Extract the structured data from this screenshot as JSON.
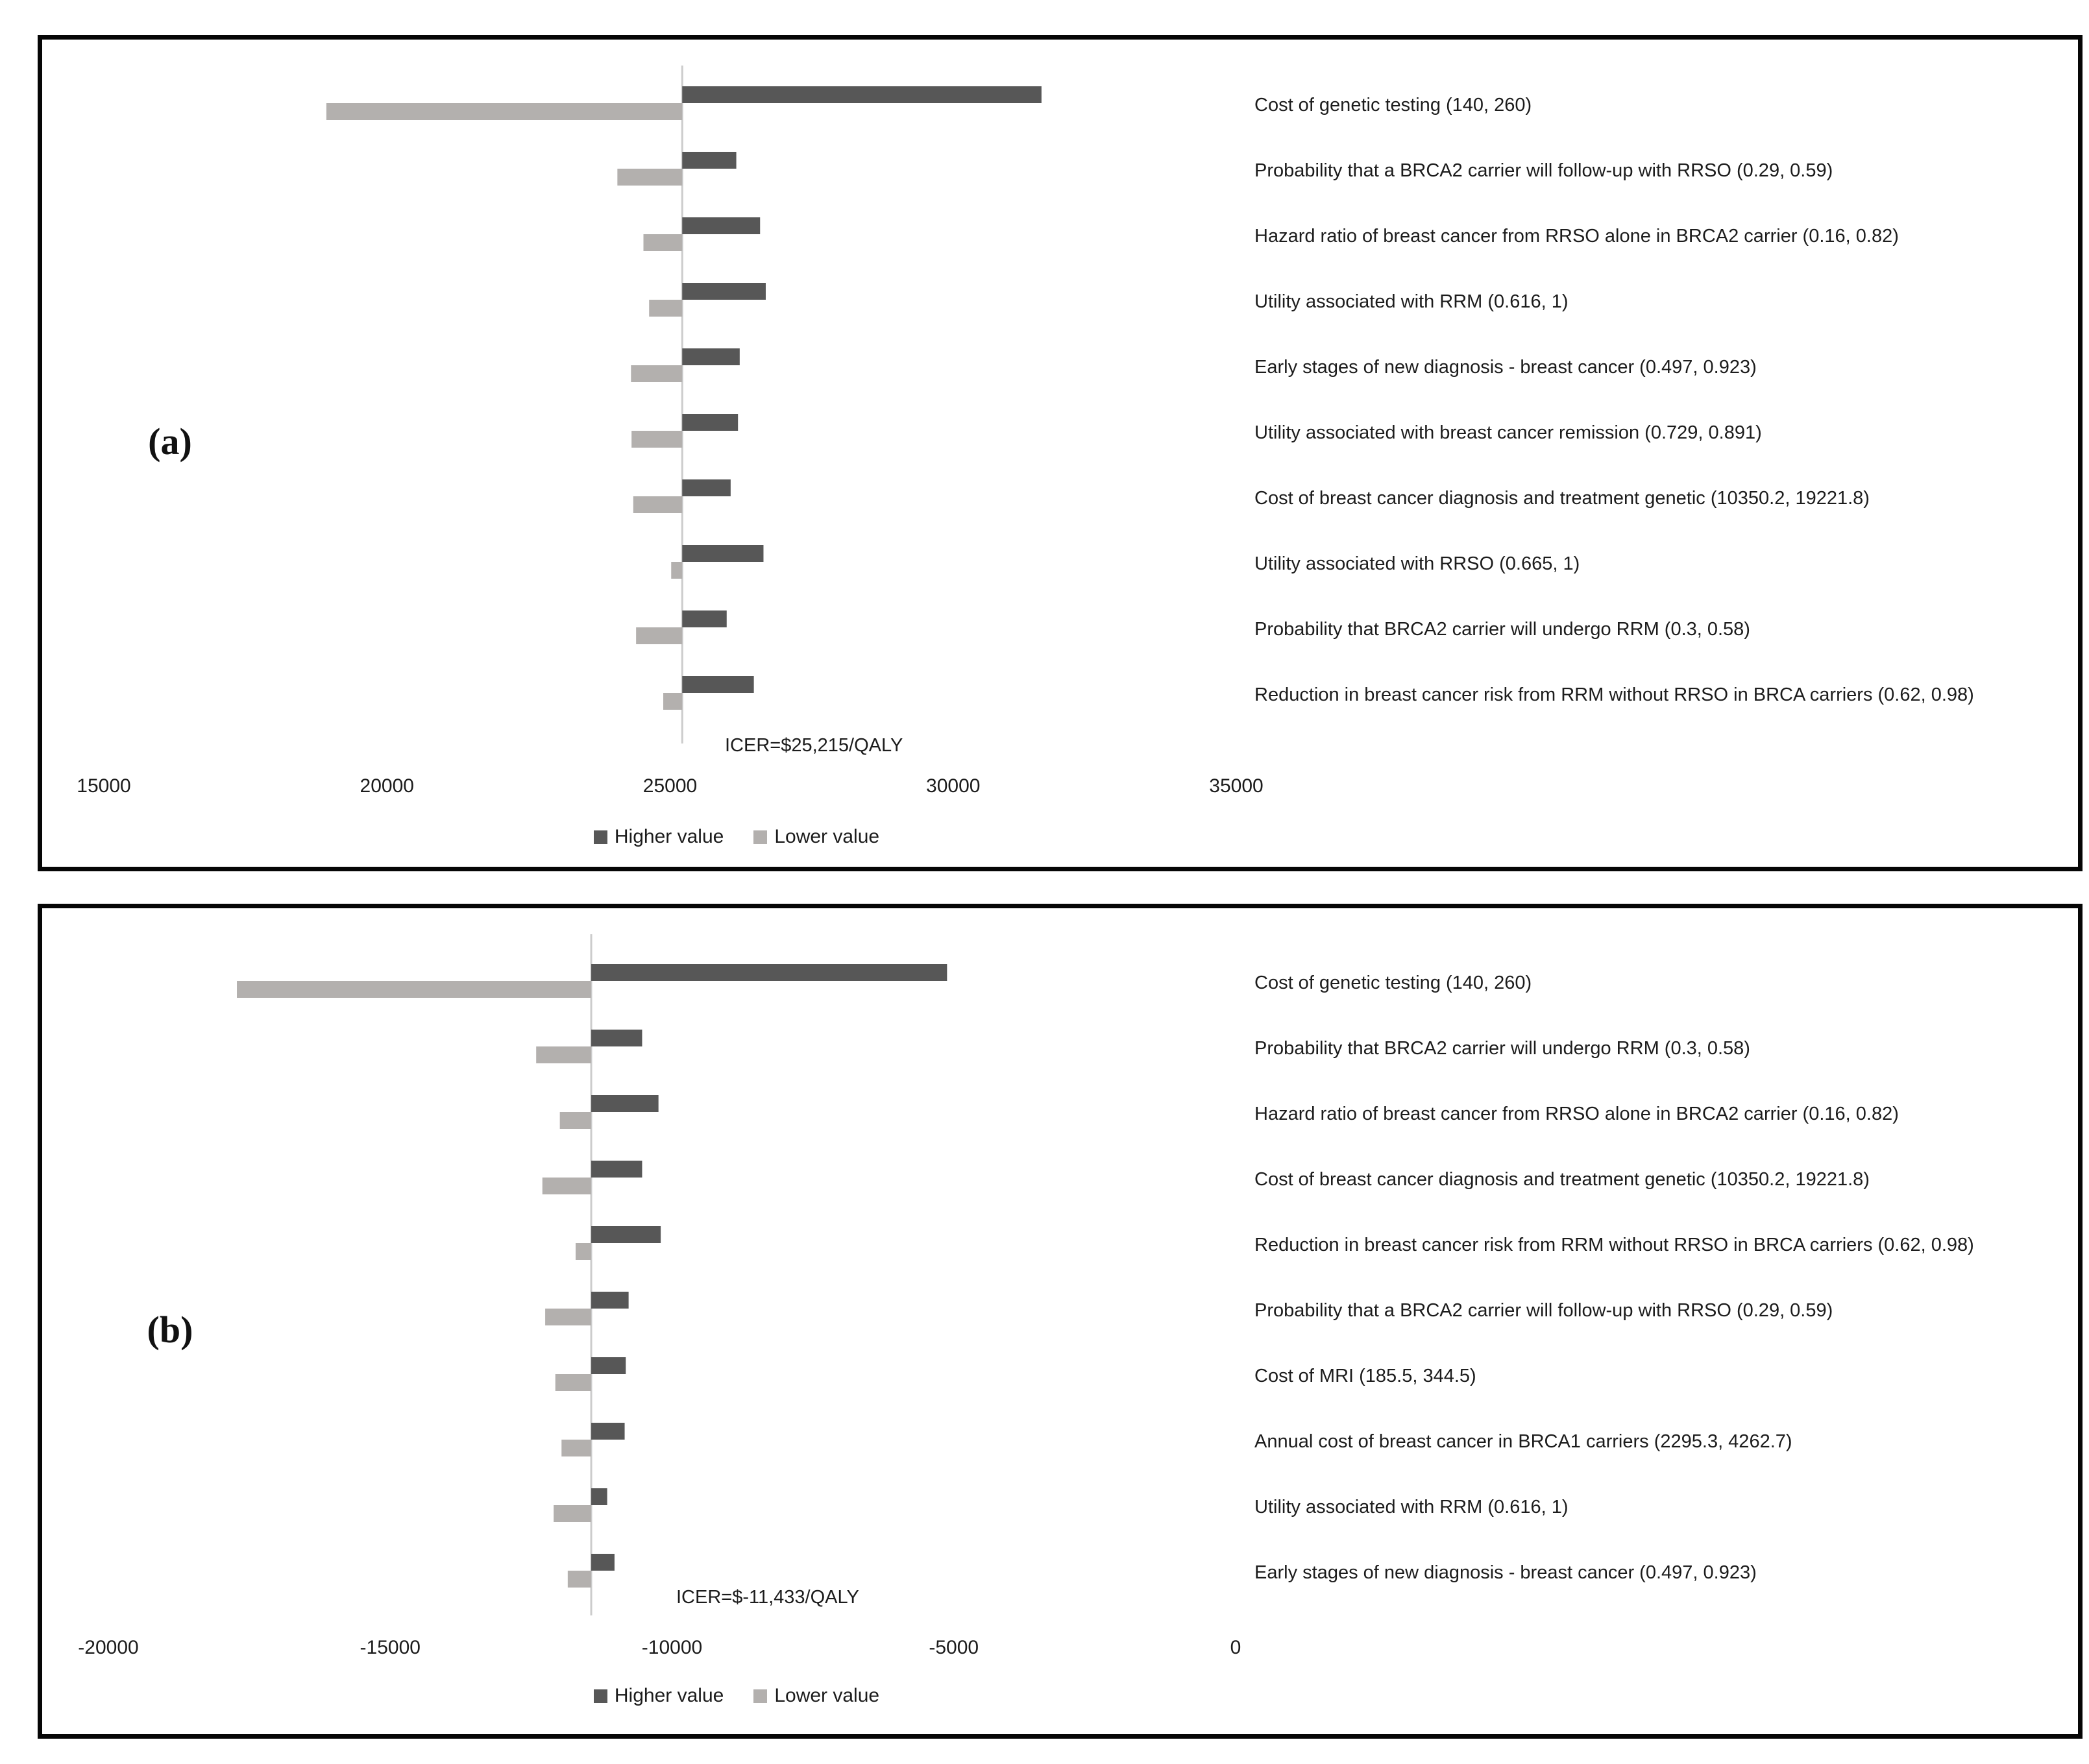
{
  "figure": {
    "background": "#ffffff",
    "panels": [
      {
        "panel_label": "(a)"
      },
      {
        "panel_label": "(b)"
      }
    ]
  },
  "colors": {
    "higher": "#575757",
    "lower": "#b3b0ae",
    "baseline_line": "#cccccc",
    "panel_border": "#060606",
    "text": "#1c1c1c"
  },
  "chart_data": [
    {
      "type": "bar",
      "subtype": "tornado",
      "orientation": "horizontal",
      "baseline_label": "ICER=$25,215/QALY",
      "baseline_value": 25215,
      "xlim": [
        15000,
        35000
      ],
      "x_tick_values": [
        15000,
        20000,
        25000,
        30000,
        35000
      ],
      "x_ticks": [
        "15000",
        "20000",
        "25000",
        "30000",
        "35000"
      ],
      "grid": false,
      "legend_position": "bottom",
      "categories": [
        "Cost of genetic testing (140, 260)",
        "Probability that a BRCA2 carrier will follow-up with RRSO (0.29, 0.59)",
        "Hazard ratio of breast cancer from RRSO alone in BRCA2 carrier (0.16, 0.82)",
        "Utility associated with RRM (0.616, 1)",
        "Early stages of new diagnosis - breast cancer (0.497, 0.923)",
        "Utility associated with breast cancer remission (0.729, 0.891)",
        "Cost of breast cancer diagnosis and treatment genetic (10350.2, 19221.8)",
        "Utility associated with RRSO (0.665, 1)",
        "Probability that BRCA2 carrier will undergo RRM (0.3, 0.58)",
        "Reduction in breast cancer risk from RRM without RRSO in BRCA carriers (0.62, 0.98)"
      ],
      "series": [
        {
          "name": "Higher value",
          "color": "#575757",
          "values": [
            31560,
            26170,
            26590,
            26690,
            26230,
            26200,
            26070,
            26650,
            26000,
            26480
          ]
        },
        {
          "name": "Lower value",
          "color": "#b3b0ae",
          "values": [
            18930,
            24070,
            24530,
            24630,
            24310,
            24320,
            24350,
            25020,
            24400,
            24880
          ]
        }
      ]
    },
    {
      "type": "bar",
      "subtype": "tornado",
      "orientation": "horizontal",
      "baseline_label": "ICER=$-11,433/QALY",
      "baseline_value": -11433,
      "xlim": [
        -20000,
        0
      ],
      "x_tick_values": [
        -20000,
        -15000,
        -10000,
        -5000,
        0
      ],
      "x_ticks": [
        "-20000",
        "-15000",
        "-10000",
        "-5000",
        "0"
      ],
      "grid": false,
      "legend_position": "bottom",
      "categories": [
        "Cost of genetic testing (140, 260)",
        "Probability that BRCA2 carrier will undergo RRM (0.3, 0.58)",
        "Hazard ratio of breast cancer from RRSO alone in BRCA2 carrier (0.16, 0.82)",
        "Cost of breast cancer diagnosis and treatment genetic (10350.2, 19221.8)",
        "Reduction in breast cancer risk from RRM without RRSO in BRCA carriers (0.62, 0.98)",
        "Probability that a BRCA2 carrier will follow-up with RRSO (0.29, 0.59)",
        "Cost of MRI (185.5, 344.5)",
        "Annual cost of breast cancer in BRCA1 carriers (2295.3, 4262.7)",
        "Utility associated with RRM (0.616, 1)",
        "Early stages of new diagnosis - breast cancer (0.497, 0.923)"
      ],
      "series": [
        {
          "name": "Higher value",
          "color": "#575757",
          "values": [
            -5120,
            -10530,
            -10240,
            -10530,
            -10200,
            -10770,
            -10820,
            -10840,
            -11150,
            -11020
          ]
        },
        {
          "name": "Lower value",
          "color": "#b3b0ae",
          "values": [
            -17720,
            -12410,
            -11990,
            -12300,
            -11710,
            -12250,
            -12070,
            -11960,
            -12100,
            -11850
          ]
        }
      ]
    }
  ]
}
